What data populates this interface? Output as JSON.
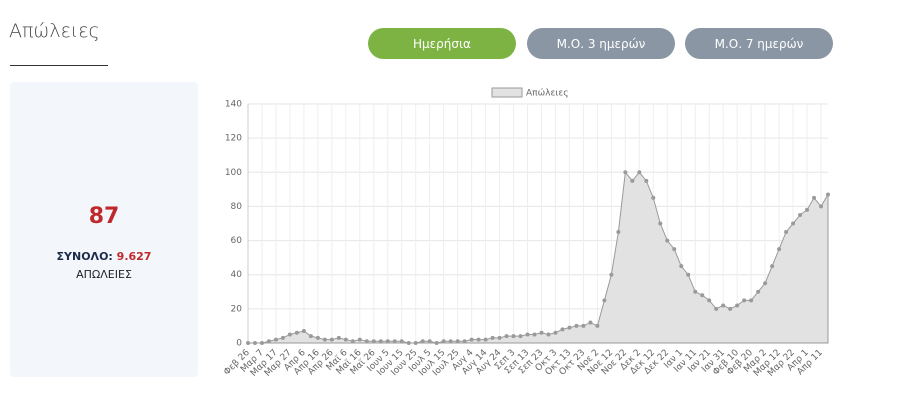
{
  "header": {
    "title": "Απώλειες"
  },
  "buttons": [
    "Ημερήσια",
    "Μ.Ο. 3 ημερών",
    "Μ.Ο. 7 ημερών"
  ],
  "summary": {
    "today": "87",
    "total_label": "ΣΥΝΟΛΟ:",
    "total_value": "9.627",
    "caption": "ΑΠΩΛΕΙΕΣ"
  },
  "chart_data": {
    "type": "area",
    "legend": "Απώλειες",
    "fill": "#e2e2e2",
    "color": "#9a9a9a",
    "grid": true,
    "categories": [
      "Φεβ 26",
      null,
      "Μαρ 7",
      null,
      "Μαρ 17",
      null,
      "Μαρ 27",
      null,
      "Απρ 6",
      null,
      "Απρ 16",
      null,
      "Απρ 26",
      null,
      "Μαϊ 6",
      null,
      "Μαϊ 16",
      null,
      "Μαϊ 26",
      null,
      "Ιουν 5",
      null,
      "Ιουν 15",
      null,
      "Ιουν 25",
      null,
      "Ιουλ 5",
      null,
      "Ιουλ 15",
      null,
      "Ιουλ 25",
      null,
      "Αυγ 4",
      null,
      "Αυγ 14",
      null,
      "Αυγ 24",
      null,
      "Σεπ 3",
      null,
      "Σεπ 13",
      null,
      "Σεπ 23",
      null,
      "Οκτ 3",
      null,
      "Οκτ 13",
      null,
      "Οκτ 23",
      null,
      "Νοε 2",
      null,
      "Νοε 12",
      null,
      "Νοε 22",
      null,
      "Δεκ 2",
      null,
      "Δεκ 12",
      null,
      "Δεκ 22",
      null,
      "Ιαν 1",
      null,
      "Ιαν 11",
      null,
      "Ιαν 21",
      null,
      "Ιαν 31",
      null,
      "Φεβ 10",
      null,
      "Φεβ 20",
      null,
      "Μαρ 2",
      null,
      "Μαρ 12",
      null,
      "Μαρ 22",
      null,
      "Απρ 1",
      null,
      "Απρ 11",
      null
    ],
    "values": [
      0,
      0,
      0,
      1,
      2,
      3,
      5,
      6,
      7,
      4,
      3,
      2,
      2,
      3,
      2,
      1,
      2,
      1,
      1,
      1,
      1,
      1,
      1,
      0,
      0,
      1,
      1,
      0,
      1,
      1,
      1,
      1,
      2,
      2,
      2,
      3,
      3,
      4,
      4,
      4,
      5,
      5,
      6,
      5,
      6,
      8,
      9,
      10,
      10,
      12,
      10,
      25,
      40,
      65,
      100,
      95,
      100,
      95,
      85,
      70,
      60,
      55,
      45,
      40,
      30,
      28,
      25,
      20,
      22,
      20,
      22,
      25,
      25,
      30,
      35,
      45,
      55,
      65,
      70,
      75,
      78,
      85,
      80,
      87
    ],
    "ylim": [
      0,
      140
    ],
    "yticks": [
      0,
      20,
      40,
      60,
      80,
      100,
      120,
      140
    ]
  }
}
